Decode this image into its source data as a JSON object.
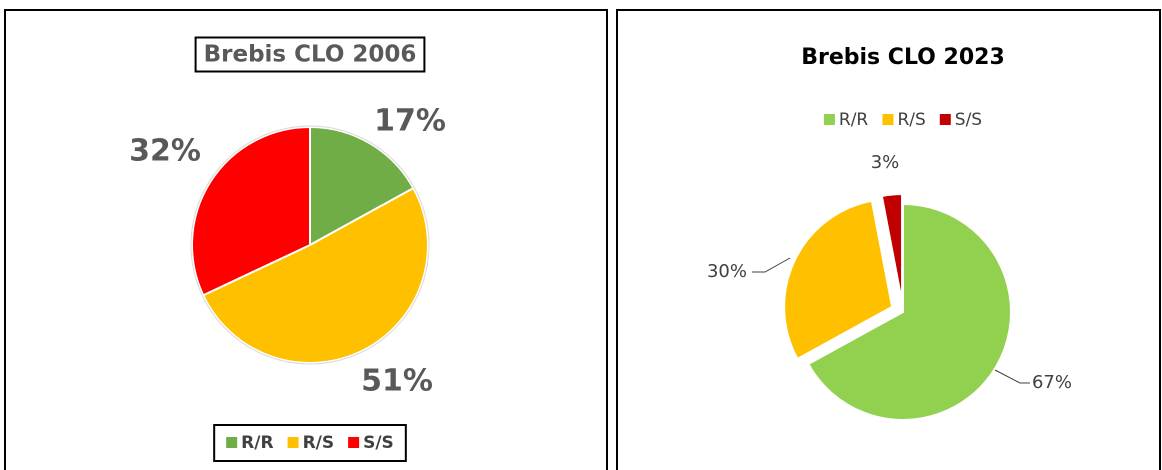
{
  "chart_data": [
    {
      "type": "pie",
      "title": "Brebis CLO 2006",
      "categories": [
        "R/R",
        "R/S",
        "S/S"
      ],
      "values": [
        17,
        51,
        32
      ],
      "value_labels": [
        "17%",
        "51%",
        "32%"
      ],
      "colors": [
        "#70ad47",
        "#ffc000",
        "#ff0000"
      ],
      "legend": "bottom"
    },
    {
      "type": "pie",
      "title": "Brebis CLO 2023",
      "categories": [
        "R/R",
        "R/S",
        "S/S"
      ],
      "values": [
        67,
        30,
        3
      ],
      "value_labels": [
        "67%",
        "30%",
        "3%"
      ],
      "colors": [
        "#92d050",
        "#ffc000",
        "#c00000"
      ],
      "legend": "top"
    }
  ]
}
